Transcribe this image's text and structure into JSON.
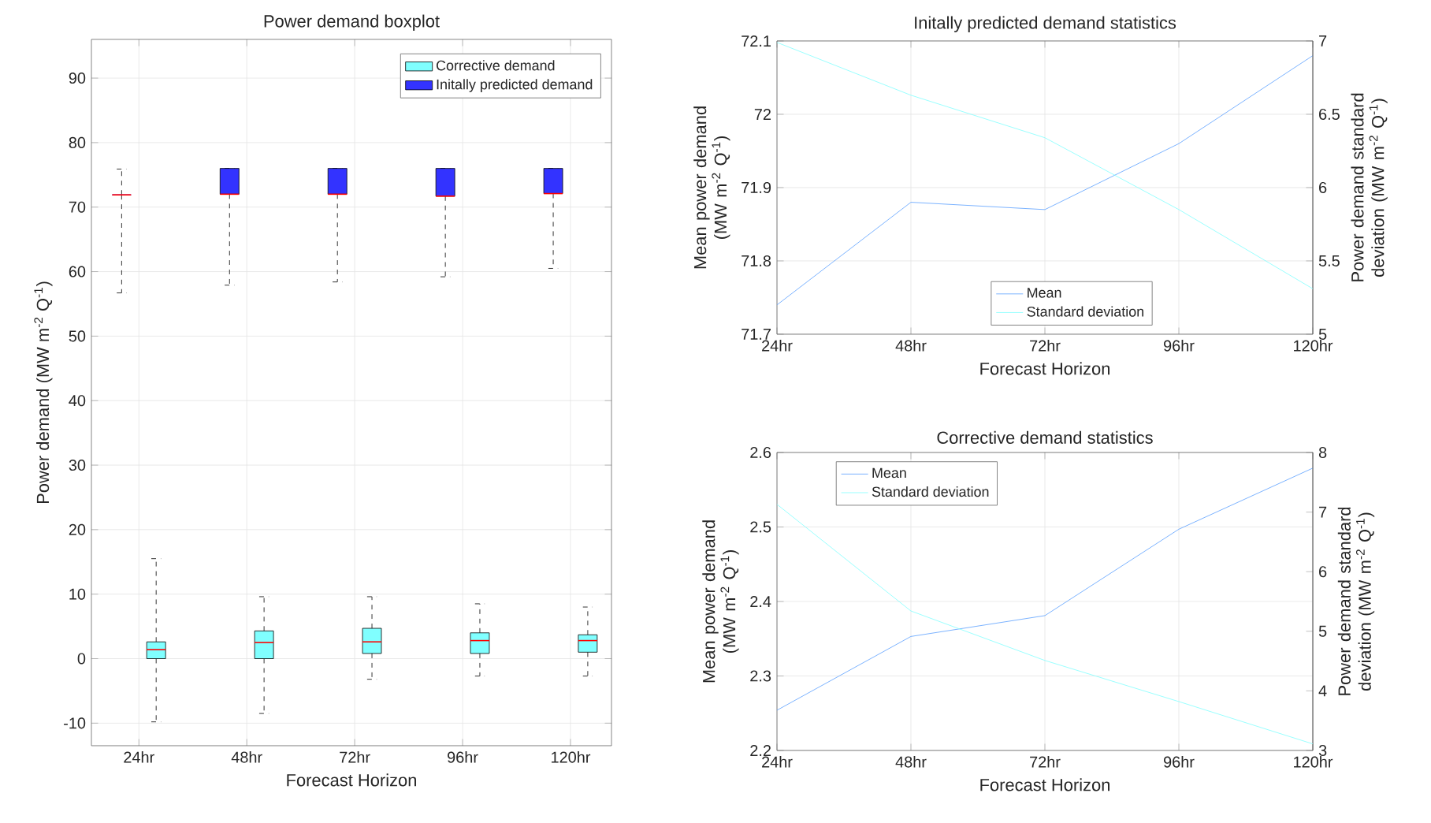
{
  "chart_data": [
    {
      "type": "box",
      "title": "Power demand boxplot",
      "xlabel": "Forecast Horizon",
      "ylabel": "Power demand (MW m$^{-2}$ Q$^{-1}$)",
      "categories": [
        "24hr",
        "48hr",
        "72hr",
        "96hr",
        "120hr"
      ],
      "ylim": [
        -13.5,
        96
      ],
      "yticks": [
        -10,
        0,
        10,
        20,
        30,
        40,
        50,
        60,
        70,
        80,
        90
      ],
      "grid": true,
      "legend": "top right",
      "series": [
        {
          "name": "Corrective demand",
          "color": "#80ffff",
          "boxes": [
            {
              "low": -9.8,
              "q1": 0,
              "median": 1.4,
              "q3": 2.6,
              "high": 15.5
            },
            {
              "low": -8.5,
              "q1": 0,
              "median": 2.5,
              "q3": 4.3,
              "high": 9.6
            },
            {
              "low": -3.2,
              "q1": 0.8,
              "median": 2.6,
              "q3": 4.7,
              "high": 9.6
            },
            {
              "low": -2.7,
              "q1": 0.8,
              "median": 2.8,
              "q3": 4.0,
              "high": 8.5
            },
            {
              "low": -2.7,
              "q1": 1.0,
              "median": 2.8,
              "q3": 3.7,
              "high": 8.0
            }
          ]
        },
        {
          "name": "Initally predicted demand",
          "color": "#3333ff",
          "boxes": [
            {
              "low": 56.7,
              "q1": 71.9,
              "median": 71.9,
              "q3": 71.9,
              "high": 75.9
            },
            {
              "low": 57.9,
              "q1": 72.0,
              "median": 72.0,
              "q3": 76.0,
              "high": 76.0
            },
            {
              "low": 58.4,
              "q1": 72.0,
              "median": 72.0,
              "q3": 76.0,
              "high": 76.0
            },
            {
              "low": 59.2,
              "q1": 71.7,
              "median": 71.7,
              "q3": 76.0,
              "high": 76.0
            },
            {
              "low": 60.5,
              "q1": 72.1,
              "median": 72.1,
              "q3": 76.0,
              "high": 76.0
            }
          ]
        }
      ]
    },
    {
      "type": "line",
      "title": "Initally predicted demand statistics",
      "xlabel": "Forecast Horizon",
      "ylabel": "Mean power demand (MW m$^{-2}$ Q$^{-1}$)",
      "y2label": "Power demand standard deviation (MW m$^{-2}$ Q$^{-1}$)",
      "categories": [
        "24hr",
        "48hr",
        "72hr",
        "96hr",
        "120hr"
      ],
      "ylim": [
        71.7,
        72.1
      ],
      "yticks": [
        71.7,
        71.8,
        71.9,
        72,
        72.1
      ],
      "y2lim": [
        5,
        7
      ],
      "y2ticks": [
        5,
        5.5,
        6,
        6.5,
        7
      ],
      "grid": true,
      "legend": "bottom",
      "series": [
        {
          "name": "Mean",
          "color": "#5aa0ff",
          "values": [
            71.74,
            71.88,
            71.87,
            71.96,
            72.08
          ]
        },
        {
          "name": "Standard deviation",
          "color": "#80ffff",
          "axis": "y2",
          "values": [
            6.99,
            6.63,
            6.34,
            5.85,
            5.31
          ]
        }
      ]
    },
    {
      "type": "line",
      "title": "Corrective demand statistics",
      "xlabel": "Forecast Horizon",
      "ylabel": "Mean power demand (MW m$^{-2}$ Q$^{-1}$)",
      "y2label": "Power demand standard deviation (MW m$^{-2}$ Q$^{-1}$)",
      "categories": [
        "24hr",
        "48hr",
        "72hr",
        "96hr",
        "120hr"
      ],
      "ylim": [
        2.2,
        2.6
      ],
      "yticks": [
        2.2,
        2.3,
        2.4,
        2.5,
        2.6
      ],
      "y2lim": [
        3,
        8
      ],
      "y2ticks": [
        3,
        4,
        5,
        6,
        7,
        8
      ],
      "grid": true,
      "legend": "top left",
      "series": [
        {
          "name": "Mean",
          "color": "#5aa0ff",
          "values": [
            2.254,
            2.353,
            2.381,
            2.497,
            2.579
          ]
        },
        {
          "name": "Standard deviation",
          "color": "#80ffff",
          "axis": "y2",
          "values": [
            7.13,
            5.34,
            4.51,
            3.82,
            3.11
          ]
        }
      ]
    }
  ]
}
